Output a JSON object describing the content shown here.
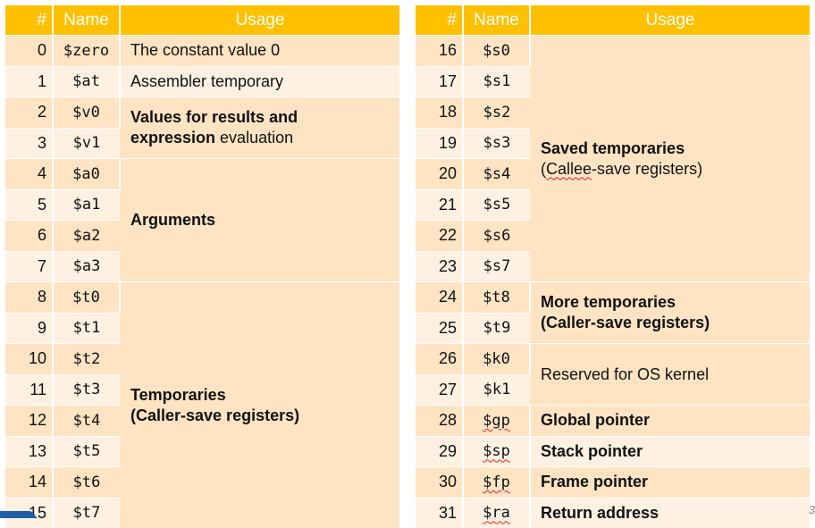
{
  "headers": {
    "num": "#",
    "name": "Name",
    "usage": "Usage"
  },
  "left": {
    "rows": [
      {
        "num": "0",
        "name": "$zero"
      },
      {
        "num": "1",
        "name": "$at"
      },
      {
        "num": "2",
        "name": "$v0"
      },
      {
        "num": "3",
        "name": "$v1"
      },
      {
        "num": "4",
        "name": "$a0"
      },
      {
        "num": "5",
        "name": "$a1"
      },
      {
        "num": "6",
        "name": "$a2"
      },
      {
        "num": "7",
        "name": "$a3"
      },
      {
        "num": "8",
        "name": "$t0"
      },
      {
        "num": "9",
        "name": "$t1"
      },
      {
        "num": "10",
        "name": "$t2"
      },
      {
        "num": "11",
        "name": "$t3"
      },
      {
        "num": "12",
        "name": "$t4"
      },
      {
        "num": "13",
        "name": "$t5"
      },
      {
        "num": "14",
        "name": "$t6"
      },
      {
        "num": "15",
        "name": "$t7"
      }
    ],
    "usage": {
      "zero": "The constant value 0",
      "at": "Assembler temporary",
      "v_bold1": "Values for results and",
      "v_bold2": "expression",
      "v_rest": " evaluation",
      "args": "Arguments",
      "temps1": "Temporaries",
      "temps2": "(Caller-save registers)"
    }
  },
  "right": {
    "rows": [
      {
        "num": "16",
        "name": "$s0"
      },
      {
        "num": "17",
        "name": "$s1"
      },
      {
        "num": "18",
        "name": "$s2"
      },
      {
        "num": "19",
        "name": "$s3"
      },
      {
        "num": "20",
        "name": "$s4"
      },
      {
        "num": "21",
        "name": "$s5"
      },
      {
        "num": "22",
        "name": "$s6"
      },
      {
        "num": "23",
        "name": "$s7"
      },
      {
        "num": "24",
        "name": "$t8"
      },
      {
        "num": "25",
        "name": "$t9"
      },
      {
        "num": "26",
        "name": "$k0"
      },
      {
        "num": "27",
        "name": "$k1"
      },
      {
        "num": "28",
        "name": "$gp"
      },
      {
        "num": "29",
        "name": "$sp"
      },
      {
        "num": "30",
        "name": "$fp"
      },
      {
        "num": "31",
        "name": "$ra"
      }
    ],
    "usage": {
      "saved1": "Saved temporaries",
      "saved2_open": "(",
      "saved2_callee": "Callee",
      "saved2_rest": "-save registers)",
      "more1": "More temporaries",
      "more2": "(Caller-save registers)",
      "kernel": "Reserved for OS kernel",
      "gp": "Global pointer",
      "sp": "Stack pointer",
      "fp": "Frame pointer",
      "ra": "Return address"
    }
  },
  "page_number": "3",
  "colors": {
    "header": "#FFC000",
    "row_dark": "#FFE4C4",
    "row_light": "#FFF1E2"
  }
}
